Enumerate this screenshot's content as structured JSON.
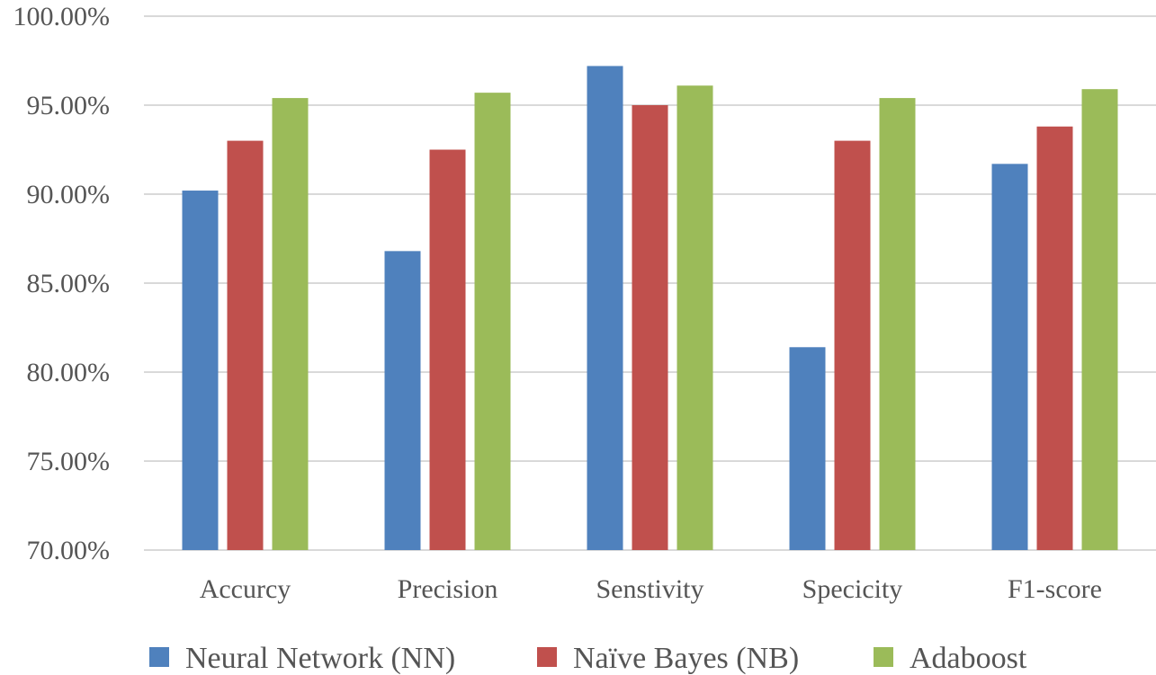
{
  "chart_data": {
    "type": "bar",
    "title": "",
    "xlabel": "",
    "ylabel": "",
    "categories": [
      "Accurcy",
      "Precision",
      "Senstivity",
      "Specicity",
      "F1-score"
    ],
    "series": [
      {
        "name": "Neural Network (NN)",
        "color": "#4f81bd",
        "values": [
          90.2,
          86.8,
          97.2,
          81.4,
          91.7
        ]
      },
      {
        "name": "Naïve Bayes (NB)",
        "color": "#c0504d",
        "values": [
          93.0,
          92.5,
          95.0,
          93.0,
          93.8
        ]
      },
      {
        "name": "Adaboost",
        "color": "#9bbb59",
        "values": [
          95.4,
          95.7,
          96.1,
          95.4,
          95.9
        ]
      }
    ],
    "ylim": [
      70,
      100
    ],
    "yticks": [
      70,
      75,
      80,
      85,
      90,
      95,
      100
    ],
    "ytick_labels": [
      "70.00%",
      "75.00%",
      "80.00%",
      "85.00%",
      "90.00%",
      "95.00%",
      "100.00%"
    ],
    "grid": true,
    "legend_position": "bottom"
  }
}
